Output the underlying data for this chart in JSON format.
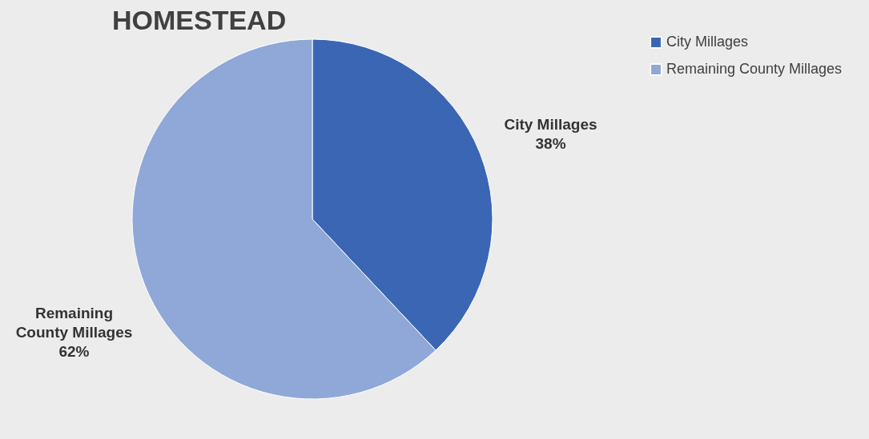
{
  "chart_data": {
    "type": "pie",
    "title": "HOMESTEAD",
    "categories": [
      "City Millages",
      "Remaining County Millages"
    ],
    "values": [
      38,
      62
    ],
    "colors": [
      "#3a66b4",
      "#8fa8d8"
    ],
    "value_labels": [
      "38%",
      "62%"
    ],
    "legend": "right"
  }
}
